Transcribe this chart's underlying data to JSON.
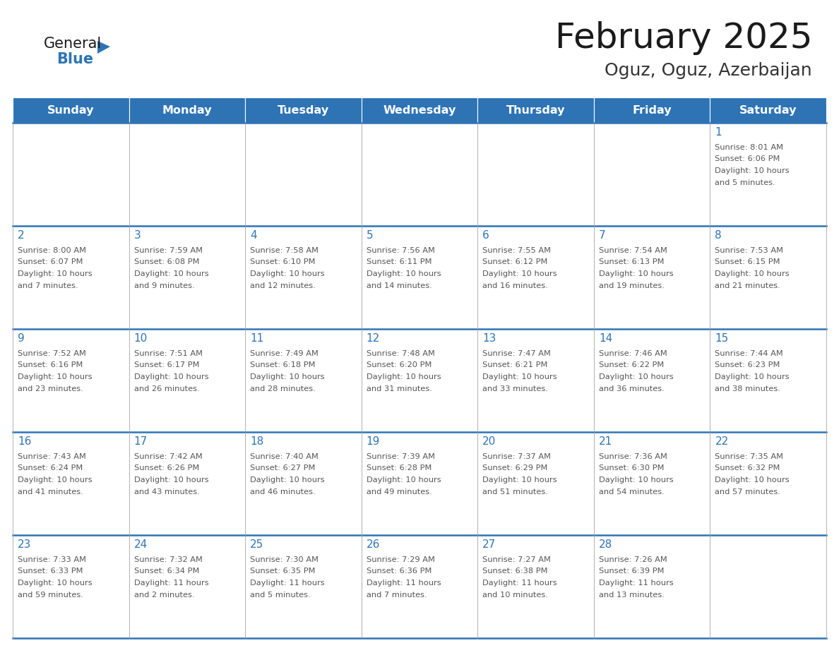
{
  "title": "February 2025",
  "subtitle": "Oguz, Oguz, Azerbaijan",
  "header_color": "#2E74B5",
  "header_text_color": "#FFFFFF",
  "days_of_week": [
    "Sunday",
    "Monday",
    "Tuesday",
    "Wednesday",
    "Thursday",
    "Friday",
    "Saturday"
  ],
  "line_color": "#2E74B5",
  "text_color": "#555555",
  "day_number_color": "#2E74B5",
  "cell_border_color": "#AAAAAA",
  "calendar_data": [
    [
      null,
      null,
      null,
      null,
      null,
      null,
      {
        "day": "1",
        "sunrise": "8:01 AM",
        "sunset": "6:06 PM",
        "daylight": "10 hours",
        "daylight2": "and 5 minutes."
      }
    ],
    [
      {
        "day": "2",
        "sunrise": "8:00 AM",
        "sunset": "6:07 PM",
        "daylight": "10 hours",
        "daylight2": "and 7 minutes."
      },
      {
        "day": "3",
        "sunrise": "7:59 AM",
        "sunset": "6:08 PM",
        "daylight": "10 hours",
        "daylight2": "and 9 minutes."
      },
      {
        "day": "4",
        "sunrise": "7:58 AM",
        "sunset": "6:10 PM",
        "daylight": "10 hours",
        "daylight2": "and 12 minutes."
      },
      {
        "day": "5",
        "sunrise": "7:56 AM",
        "sunset": "6:11 PM",
        "daylight": "10 hours",
        "daylight2": "and 14 minutes."
      },
      {
        "day": "6",
        "sunrise": "7:55 AM",
        "sunset": "6:12 PM",
        "daylight": "10 hours",
        "daylight2": "and 16 minutes."
      },
      {
        "day": "7",
        "sunrise": "7:54 AM",
        "sunset": "6:13 PM",
        "daylight": "10 hours",
        "daylight2": "and 19 minutes."
      },
      {
        "day": "8",
        "sunrise": "7:53 AM",
        "sunset": "6:15 PM",
        "daylight": "10 hours",
        "daylight2": "and 21 minutes."
      }
    ],
    [
      {
        "day": "9",
        "sunrise": "7:52 AM",
        "sunset": "6:16 PM",
        "daylight": "10 hours",
        "daylight2": "and 23 minutes."
      },
      {
        "day": "10",
        "sunrise": "7:51 AM",
        "sunset": "6:17 PM",
        "daylight": "10 hours",
        "daylight2": "and 26 minutes."
      },
      {
        "day": "11",
        "sunrise": "7:49 AM",
        "sunset": "6:18 PM",
        "daylight": "10 hours",
        "daylight2": "and 28 minutes."
      },
      {
        "day": "12",
        "sunrise": "7:48 AM",
        "sunset": "6:20 PM",
        "daylight": "10 hours",
        "daylight2": "and 31 minutes."
      },
      {
        "day": "13",
        "sunrise": "7:47 AM",
        "sunset": "6:21 PM",
        "daylight": "10 hours",
        "daylight2": "and 33 minutes."
      },
      {
        "day": "14",
        "sunrise": "7:46 AM",
        "sunset": "6:22 PM",
        "daylight": "10 hours",
        "daylight2": "and 36 minutes."
      },
      {
        "day": "15",
        "sunrise": "7:44 AM",
        "sunset": "6:23 PM",
        "daylight": "10 hours",
        "daylight2": "and 38 minutes."
      }
    ],
    [
      {
        "day": "16",
        "sunrise": "7:43 AM",
        "sunset": "6:24 PM",
        "daylight": "10 hours",
        "daylight2": "and 41 minutes."
      },
      {
        "day": "17",
        "sunrise": "7:42 AM",
        "sunset": "6:26 PM",
        "daylight": "10 hours",
        "daylight2": "and 43 minutes."
      },
      {
        "day": "18",
        "sunrise": "7:40 AM",
        "sunset": "6:27 PM",
        "daylight": "10 hours",
        "daylight2": "and 46 minutes."
      },
      {
        "day": "19",
        "sunrise": "7:39 AM",
        "sunset": "6:28 PM",
        "daylight": "10 hours",
        "daylight2": "and 49 minutes."
      },
      {
        "day": "20",
        "sunrise": "7:37 AM",
        "sunset": "6:29 PM",
        "daylight": "10 hours",
        "daylight2": "and 51 minutes."
      },
      {
        "day": "21",
        "sunrise": "7:36 AM",
        "sunset": "6:30 PM",
        "daylight": "10 hours",
        "daylight2": "and 54 minutes."
      },
      {
        "day": "22",
        "sunrise": "7:35 AM",
        "sunset": "6:32 PM",
        "daylight": "10 hours",
        "daylight2": "and 57 minutes."
      }
    ],
    [
      {
        "day": "23",
        "sunrise": "7:33 AM",
        "sunset": "6:33 PM",
        "daylight": "10 hours",
        "daylight2": "and 59 minutes."
      },
      {
        "day": "24",
        "sunrise": "7:32 AM",
        "sunset": "6:34 PM",
        "daylight": "11 hours",
        "daylight2": "and 2 minutes."
      },
      {
        "day": "25",
        "sunrise": "7:30 AM",
        "sunset": "6:35 PM",
        "daylight": "11 hours",
        "daylight2": "and 5 minutes."
      },
      {
        "day": "26",
        "sunrise": "7:29 AM",
        "sunset": "6:36 PM",
        "daylight": "11 hours",
        "daylight2": "and 7 minutes."
      },
      {
        "day": "27",
        "sunrise": "7:27 AM",
        "sunset": "6:38 PM",
        "daylight": "11 hours",
        "daylight2": "and 10 minutes."
      },
      {
        "day": "28",
        "sunrise": "7:26 AM",
        "sunset": "6:39 PM",
        "daylight": "11 hours",
        "daylight2": "and 13 minutes."
      },
      null
    ]
  ]
}
